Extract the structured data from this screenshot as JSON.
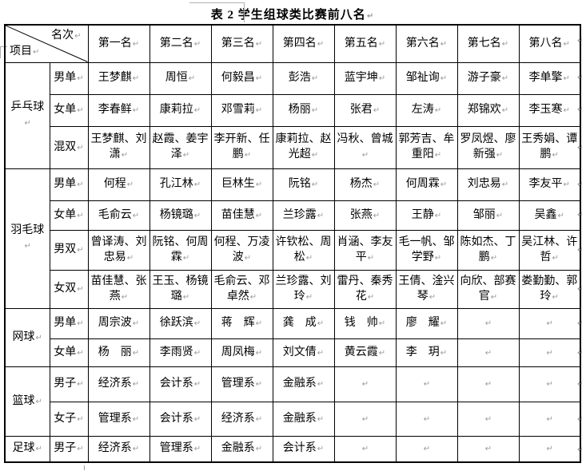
{
  "title": "表 2  学生组球类比赛前八名",
  "marks": {
    "end_of_cell": "↵"
  },
  "header": {
    "corner_top_right": "名次",
    "corner_bottom_left": "项目",
    "rank_columns": [
      "第一名",
      "第二名",
      "第三名",
      "第四名",
      "第五名",
      "第六名",
      "第七名",
      "第八名"
    ]
  },
  "sections": [
    {
      "sport": "乒乓球",
      "rows": [
        {
          "event": "男单",
          "cells": [
            "王梦麒",
            "周恒",
            "何毅昌",
            "彭浩",
            "蓝宇坤",
            "邹祉询",
            "游子豪",
            "李单擎"
          ]
        },
        {
          "event": "女单",
          "cells": [
            "李春鲜",
            "康莉拉",
            "邓雪莉",
            "杨丽",
            "张君",
            "左涛",
            "郑锦欢",
            "李玉寒"
          ]
        },
        {
          "event": "混双",
          "cells": [
            "王梦麒、刘潇",
            "赵霞、姜宇泽",
            "李开新、任鹏",
            "康莉拉、赵光超",
            "冯秋、曾城",
            "郭芳吉、牟重阳",
            "罗凤煜、廖新强",
            "王秀娟、谭鹏"
          ]
        }
      ]
    },
    {
      "sport": "羽毛球",
      "rows": [
        {
          "event": "男单",
          "cells": [
            "何程",
            "孔江林",
            "巨林生",
            "阮铭",
            "杨杰",
            "何周霖",
            "刘忠易",
            "李友平"
          ]
        },
        {
          "event": "女单",
          "cells": [
            "毛俞云",
            "杨镜璐",
            "苗佳慧",
            "兰珍露",
            "张燕",
            "王静",
            "邹丽",
            "吴鑫"
          ]
        },
        {
          "event": "男双",
          "cells": [
            "曾译涛、刘忠易",
            "阮铭、何周霖",
            "何程、万凌波",
            "许钦松、周松",
            "肖涵、李友平",
            "毛一帆、邹学野",
            "陈如杰、丁鹏",
            "吴江林、许哲"
          ]
        },
        {
          "event": "女双",
          "cells": [
            "苗佳慧、张燕",
            "王玉、杨镜璐",
            "毛俞云、邓卓然",
            "兰珍露、刘玲",
            "雷丹、秦秀花",
            "王倩、淦兴琴",
            "向欣、部赛官",
            "娄勤勤、郭玲"
          ]
        }
      ]
    },
    {
      "sport": "网球",
      "rows": [
        {
          "event": "男单",
          "cells": [
            "周宗波",
            "徐跃滨",
            "蒋　辉",
            "龚　成",
            "钱　帅",
            "廖　耀",
            "",
            ""
          ]
        },
        {
          "event": "女单",
          "cells": [
            "杨　丽",
            "李雨贤",
            "周凤梅",
            "刘文倩",
            "黄云霞",
            "李　玥",
            "",
            ""
          ]
        }
      ]
    },
    {
      "sport": "篮球",
      "rows": [
        {
          "event": "男子",
          "cells": [
            "经济系",
            "会计系",
            "管理系",
            "金融系",
            "",
            "",
            "",
            ""
          ]
        },
        {
          "event": "女子",
          "cells": [
            "管理系",
            "会计系",
            "经济系",
            "金融系",
            "",
            "",
            "",
            ""
          ]
        }
      ]
    },
    {
      "sport": "足球",
      "rows": [
        {
          "event": "男子",
          "cells": [
            "经济系",
            "管理系",
            "金融系",
            "会计系",
            "",
            "",
            "",
            ""
          ]
        }
      ]
    }
  ]
}
